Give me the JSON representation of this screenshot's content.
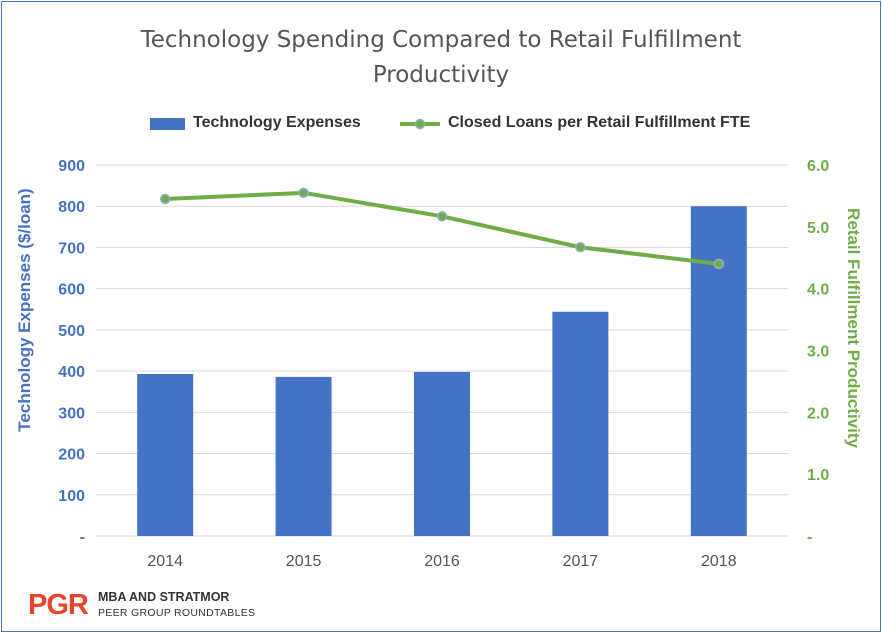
{
  "chart_data": {
    "type": "bar",
    "title_lines": [
      "Technology Spending Compared to Retail Fulfillment",
      "Productivity"
    ],
    "categories": [
      "2014",
      "2015",
      "2016",
      "2017",
      "2018"
    ],
    "series": [
      {
        "name": "Technology Expenses",
        "type": "bar",
        "axis": "left",
        "color": "#4472c4",
        "values": [
          393,
          386,
          398,
          544,
          800
        ]
      },
      {
        "name": "Closed Loans per Retail Fulfillment FTE",
        "type": "line",
        "axis": "right",
        "color": "#70ad47",
        "values": [
          5.45,
          5.55,
          5.17,
          4.67,
          4.4
        ]
      }
    ],
    "ylabel": "Technology Expenses ($/loan)",
    "ylabel_right": "Retail Fulfillment Productivity",
    "ylim": [
      0,
      900
    ],
    "ylim_right": [
      0,
      6
    ],
    "yticks": [
      "-",
      "100",
      "200",
      "300",
      "400",
      "500",
      "600",
      "700",
      "800",
      "900"
    ],
    "yticks_right": [
      "-",
      "1.0",
      "2.0",
      "3.0",
      "4.0",
      "5.0",
      "6.0"
    ],
    "grid": true,
    "legend_position": "top"
  },
  "footer": {
    "logo": "PGR",
    "line1": "MBA AND STRATMOR",
    "line2": "PEER GROUP ROUNDTABLES"
  }
}
